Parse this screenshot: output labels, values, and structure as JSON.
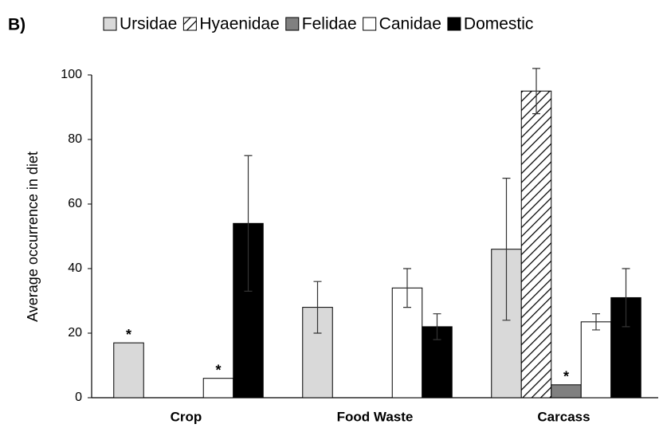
{
  "chart_data": {
    "type": "bar",
    "panel_label": "B)",
    "ylabel": "Average occurrence in diet",
    "categories": [
      "Crop",
      "Food Waste",
      "Carcass"
    ],
    "series": [
      {
        "name": "Ursidae",
        "color": "#d9d9d9",
        "values": [
          17,
          28,
          46
        ],
        "errors": [
          null,
          8,
          22
        ]
      },
      {
        "name": "Hyaenidae",
        "color": "#ffffff",
        "hatch": true,
        "values": [
          null,
          null,
          95
        ],
        "errors": [
          null,
          null,
          7
        ]
      },
      {
        "name": "Felidae",
        "color": "#808080",
        "values": [
          null,
          null,
          4
        ],
        "errors": [
          null,
          null,
          null
        ]
      },
      {
        "name": "Canidae",
        "color": "#ffffff",
        "values": [
          6,
          34,
          23.5
        ],
        "errors": [
          null,
          6,
          2.5
        ]
      },
      {
        "name": "Domestic",
        "color": "#000000",
        "values": [
          54,
          22,
          31
        ],
        "errors": [
          21,
          4,
          9
        ]
      }
    ],
    "annotations": [
      {
        "text": "*",
        "category": "Crop",
        "series": "Ursidae"
      },
      {
        "text": "*",
        "category": "Crop",
        "series": "Canidae"
      },
      {
        "text": "*",
        "category": "Carcass",
        "series": "Felidae"
      }
    ],
    "ylim": [
      0,
      100
    ],
    "yticks": [
      0,
      20,
      40,
      60,
      80,
      100
    ],
    "grid": false,
    "legend": "top"
  }
}
